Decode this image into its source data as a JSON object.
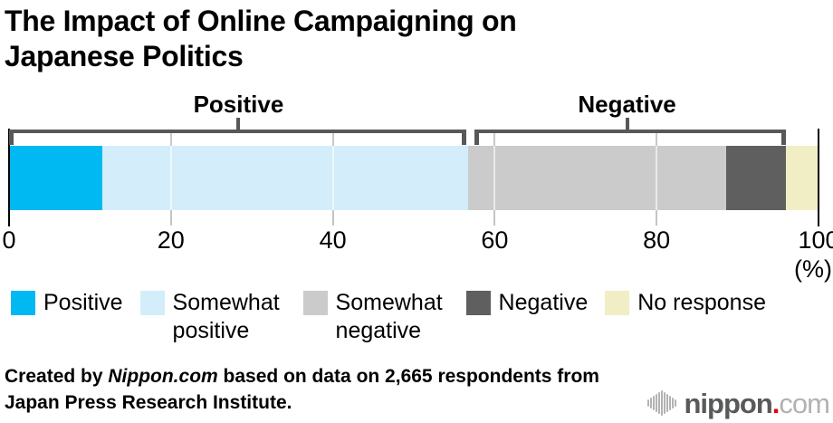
{
  "title": {
    "line1": "The Impact of Online Campaigning on",
    "line2": "Japanese Politics"
  },
  "chart_data": {
    "type": "bar",
    "subtype": "horizontal-stacked",
    "title": "The Impact of Online Campaigning on Japanese Politics",
    "unit_label": "(%)",
    "axis": {
      "min": 0,
      "max": 100,
      "ticks": [
        0,
        20,
        40,
        60,
        80,
        100
      ]
    },
    "categories": [
      "Positive",
      "Somewhat positive",
      "Somewhat negative",
      "Negative",
      "No response"
    ],
    "values": [
      11.5,
      45.2,
      31.9,
      7.4,
      4.0
    ],
    "colors": [
      "#00b9f2",
      "#d3edfb",
      "#cbcbcb",
      "#5f5f5f",
      "#f1eec5"
    ],
    "groups": [
      {
        "label": "Positive",
        "from": 0,
        "to": 56.7
      },
      {
        "label": "Negative",
        "from": 56.7,
        "to": 96.0
      }
    ],
    "grid": true,
    "legend_position": "bottom"
  },
  "legend": {
    "items": [
      {
        "label": "Positive",
        "color": "#00b9f2"
      },
      {
        "label": "Somewhat positive",
        "color": "#d3edfb"
      },
      {
        "label": "Somewhat negative",
        "color": "#cbcbcb"
      },
      {
        "label": "Negative",
        "color": "#5f5f5f"
      },
      {
        "label": "No response",
        "color": "#f1eec5"
      }
    ]
  },
  "footer": {
    "credit_prefix": "Created by ",
    "credit_source": "Nippon.com",
    "credit_suffix": " based on data on 2,665 respondents from",
    "credit_line2": "Japan Press Research Institute."
  },
  "logo": {
    "brand": "nippon",
    "dot": ".",
    "tld": "com",
    "icon": "soundwave-bars-icon",
    "colors": {
      "brand": "#58595b",
      "dot": "#e60012",
      "tld": "#b2b2b2",
      "bars": "#b2b2b2"
    }
  }
}
